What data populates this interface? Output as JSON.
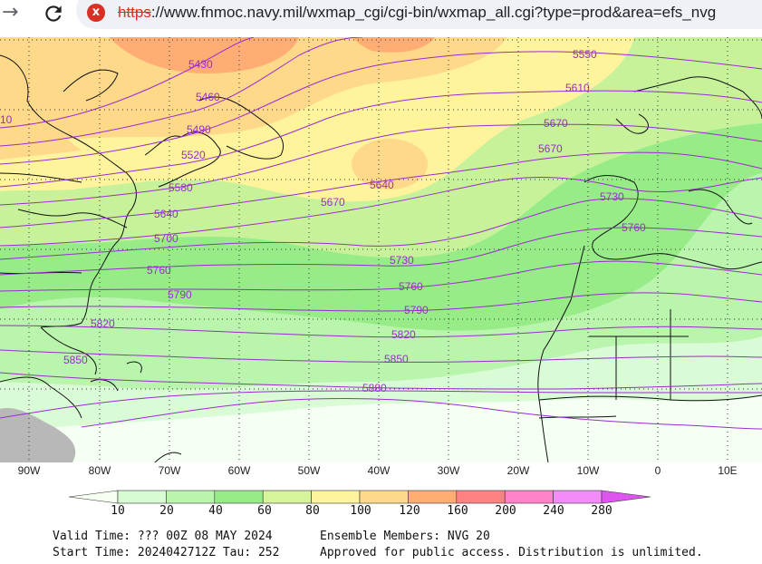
{
  "browser": {
    "url_scheme": "https",
    "url_rest": "://www.fnmoc.navy.mil/wxmap_cgi/cgi-bin/wxmap_all.cgi?type=prod&area=efs_nvg",
    "insecure_icon": "x",
    "forward_icon": "→"
  },
  "map": {
    "contours": [
      "5430",
      "5460",
      "5490",
      "5520",
      "5550",
      "5580",
      "5610",
      "5640",
      "5670",
      "5700",
      "5730",
      "5760",
      "5790",
      "5820",
      "5850",
      "5880",
      "5640",
      "5670",
      "5730",
      "5760",
      "5670",
      "5700",
      "5730",
      "5760",
      "5790",
      "5820",
      "5850",
      "5880",
      "10"
    ],
    "longitudes": [
      "90W",
      "80W",
      "70W",
      "60W",
      "50W",
      "40W",
      "30W",
      "20W",
      "10W",
      "0",
      "10E"
    ]
  },
  "colorbar": {
    "labels": [
      "10",
      "20",
      "40",
      "60",
      "80",
      "100",
      "120",
      "160",
      "200",
      "240",
      "280"
    ],
    "colors": [
      "#f7fff0",
      "#d7fbd3",
      "#b9f5ac",
      "#97ec88",
      "#d6f59a",
      "#fff49c",
      "#ffd98a",
      "#ffad75",
      "#ff8282",
      "#ff82c8",
      "#f28cf8",
      "#dd55ee"
    ]
  },
  "footer": {
    "valid_time": "Valid Time: ??? 00Z 08 MAY 2024",
    "start_time": "Start Time: 2024042712Z Tau: 252",
    "members": "Ensemble Members: NVG 20",
    "approval": "Approved for public access. Distribution is unlimited."
  }
}
